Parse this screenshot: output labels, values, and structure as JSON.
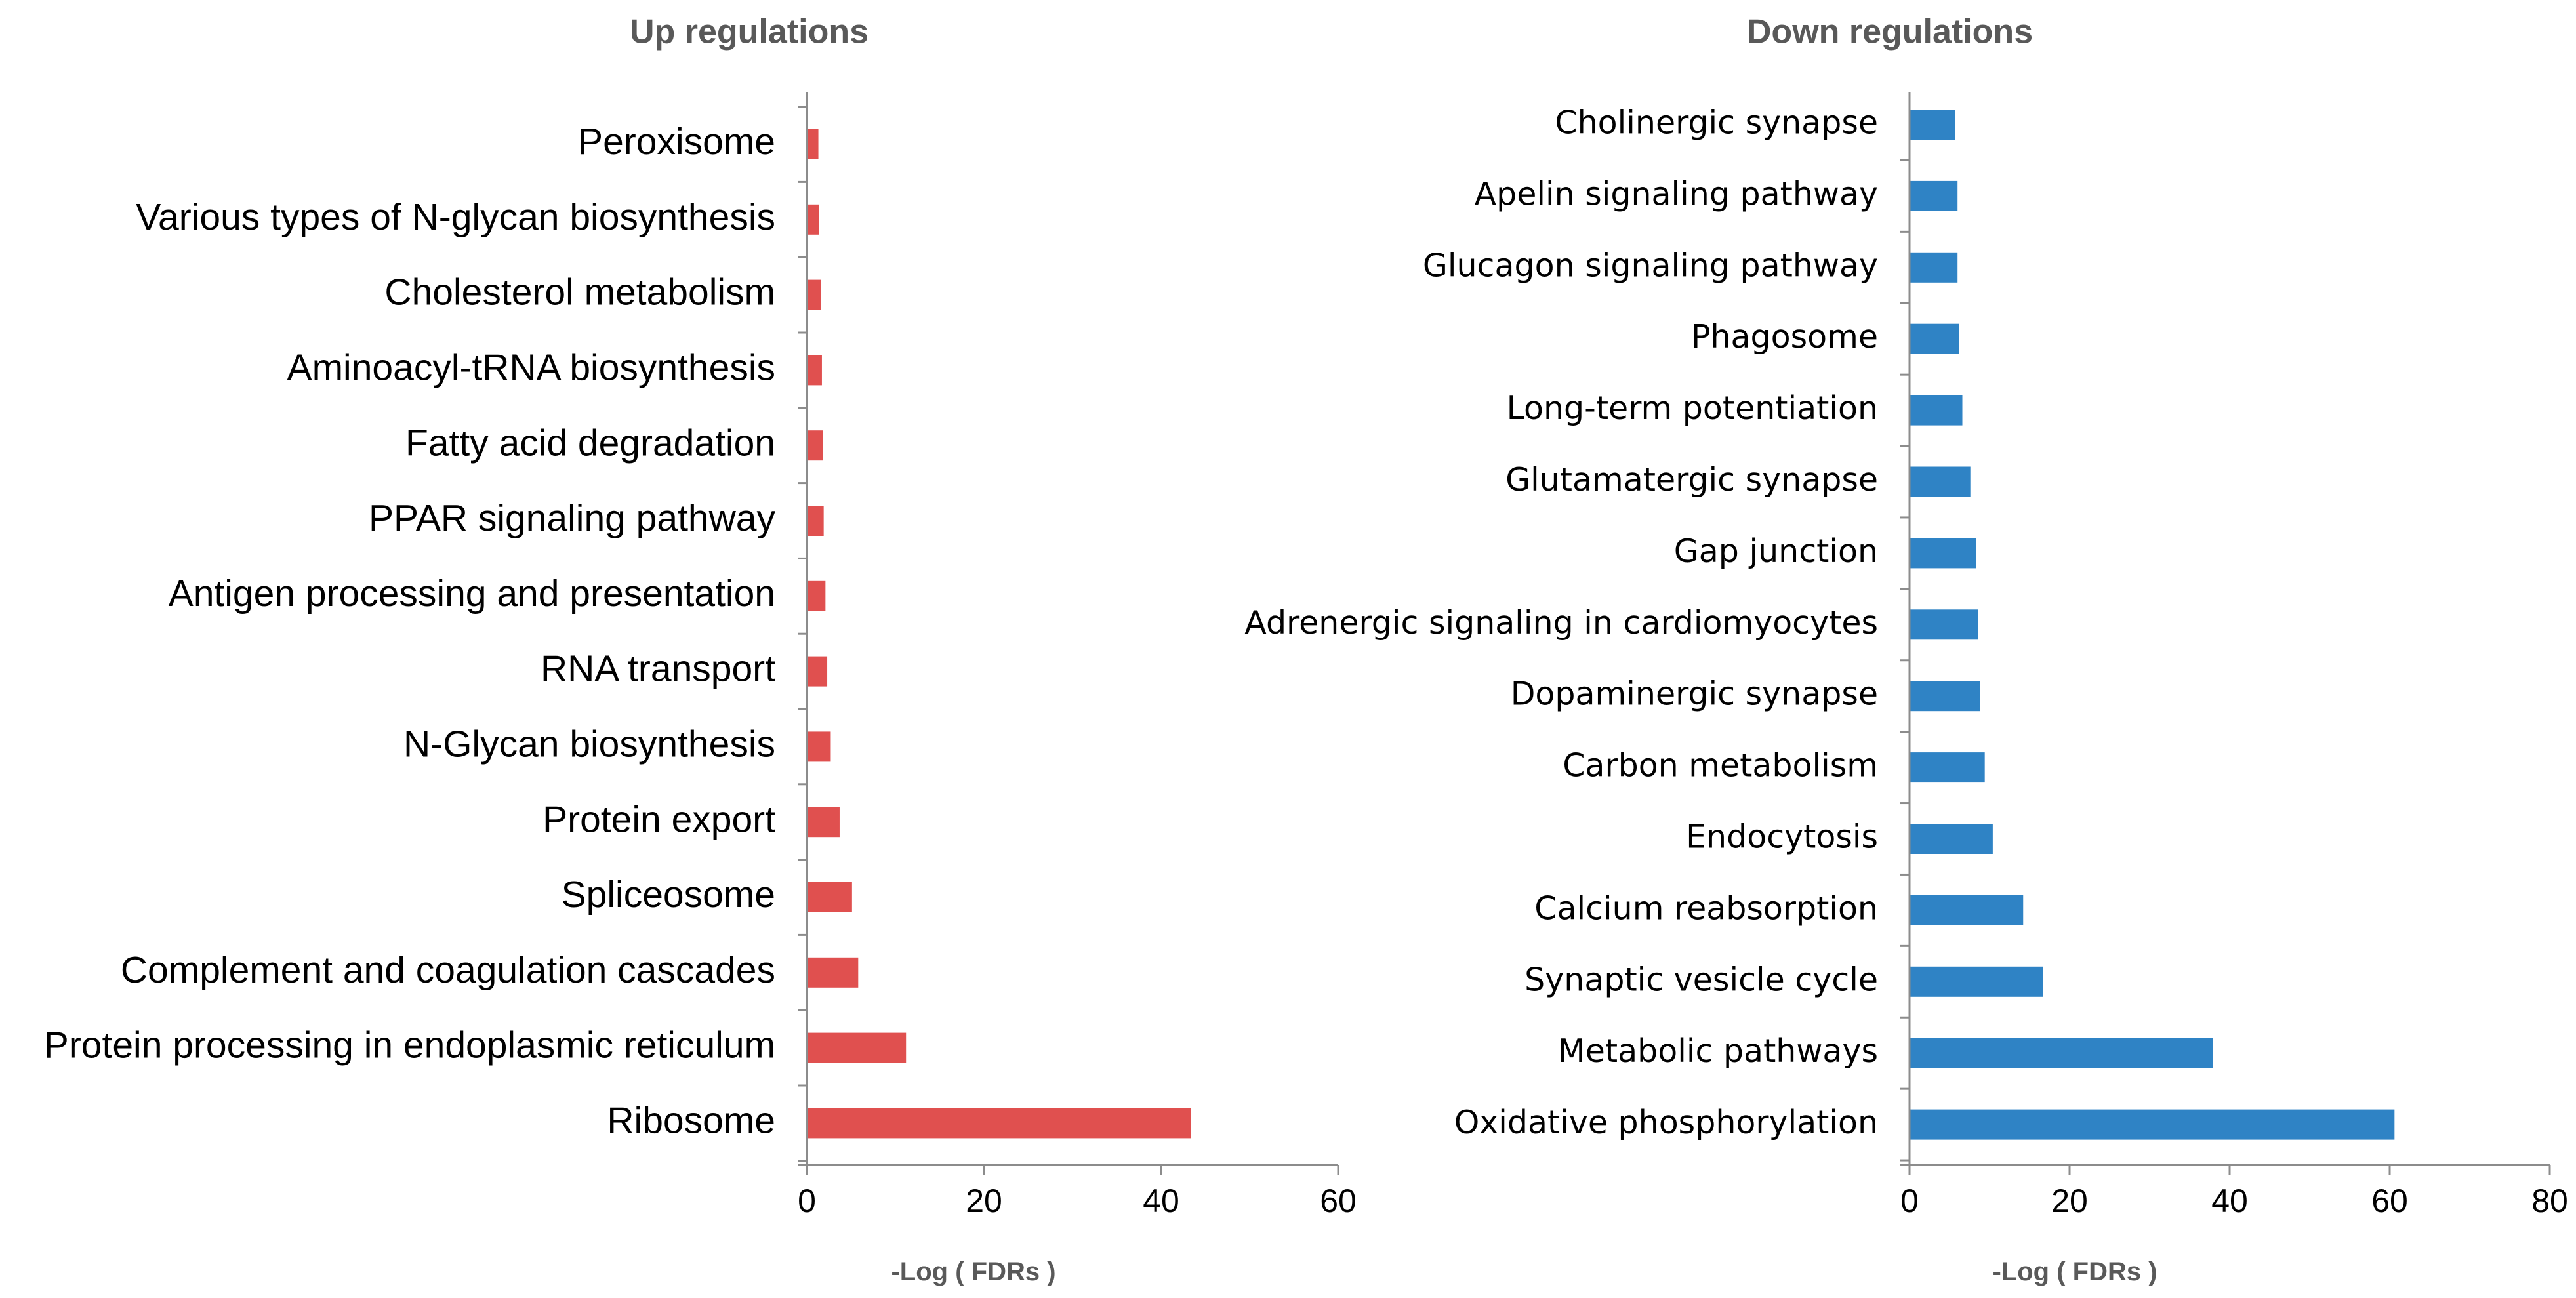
{
  "chart_data": [
    {
      "type": "bar",
      "orientation": "horizontal",
      "title": "Up regulations",
      "xlabel": "-Log ( FDRs )",
      "ylabel": "",
      "xlim": [
        0,
        60
      ],
      "xticks": [
        0,
        20,
        40,
        60
      ],
      "grid": false,
      "color": "#e0504f",
      "categories": [
        "Peroxisome",
        "Various types of N-glycan biosynthesis",
        "Cholesterol metabolism",
        "Aminoacyl-tRNA biosynthesis",
        "Fatty acid degradation",
        "PPAR signaling pathway",
        "Antigen processing and presentation",
        "RNA transport",
        "N-Glycan biosynthesis",
        "Protein export",
        "Spliceosome",
        "Complement and coagulation cascades",
        "Protein processing in endoplasmic reticulum",
        "Ribosome"
      ],
      "values": [
        1.3,
        1.4,
        1.6,
        1.7,
        1.8,
        1.9,
        2.1,
        2.3,
        2.7,
        3.7,
        5.1,
        5.8,
        11.2,
        43.4
      ]
    },
    {
      "type": "bar",
      "orientation": "horizontal",
      "title": "Down regulations",
      "xlabel": "-Log ( FDRs )",
      "ylabel": "",
      "xlim": [
        0,
        80
      ],
      "xticks": [
        0,
        20,
        40,
        60,
        80
      ],
      "grid": false,
      "color": "#2f83c5",
      "categories": [
        "Cholinergic synapse",
        "Apelin signaling pathway",
        "Glucagon signaling pathway",
        "Phagosome",
        "Long-term potentiation",
        "Glutamatergic synapse",
        "Gap junction",
        "Adrenergic signaling in cardiomyocytes",
        "Dopaminergic synapse",
        "Carbon metabolism",
        "Endocytosis",
        "Calcium reabsorption",
        "Synaptic vesicle cycle",
        "Metabolic pathways",
        "Oxidative phosphorylation"
      ],
      "values": [
        5.7,
        6.0,
        6.0,
        6.2,
        6.6,
        7.6,
        8.3,
        8.6,
        8.8,
        9.4,
        10.4,
        14.2,
        16.7,
        37.9,
        60.6
      ]
    }
  ]
}
